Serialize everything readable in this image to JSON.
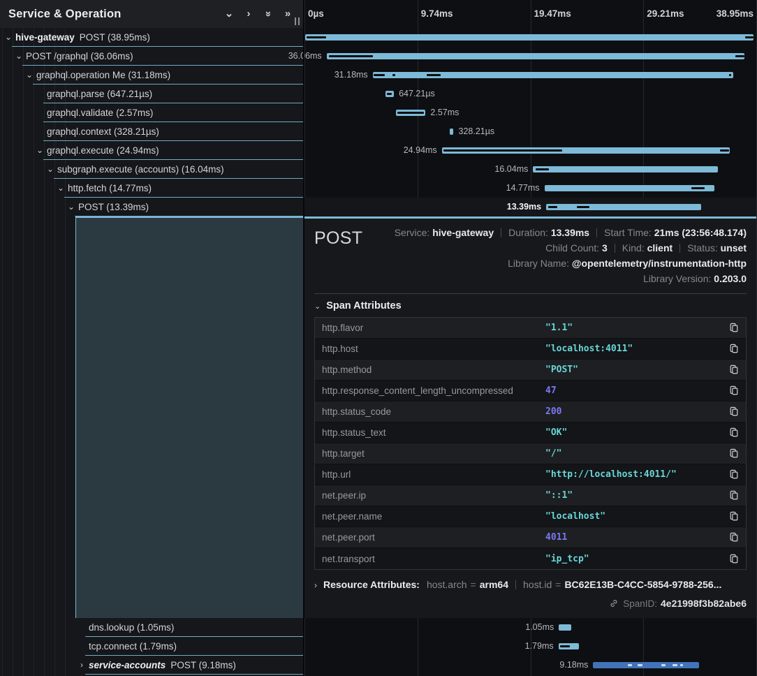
{
  "header": {
    "title": "Service & Operation",
    "icons": [
      {
        "name": "collapse-one-icon",
        "glyph": "⌄",
        "rot": false
      },
      {
        "name": "expand-one-icon",
        "glyph": "›",
        "rot": false
      },
      {
        "name": "collapse-all-icon",
        "glyph": "»",
        "rot": true
      },
      {
        "name": "expand-all-icon",
        "glyph": "»",
        "rot": false
      }
    ]
  },
  "colors": {
    "span_bar": "#7dbad7",
    "accounts_bar": "#4273ba",
    "string_value": "#69d6d3",
    "number_value": "#7b79f2",
    "selected_rect": "#2b3a41"
  },
  "ruler": {
    "ticks": [
      {
        "label": "0µs",
        "pct": 0,
        "align": "left"
      },
      {
        "label": "9.74ms",
        "pct": 25,
        "align": "left"
      },
      {
        "label": "19.47ms",
        "pct": 50,
        "align": "left"
      },
      {
        "label": "29.21ms",
        "pct": 75,
        "align": "left"
      },
      {
        "label": "38.95ms",
        "pct": 100,
        "align": "right"
      }
    ]
  },
  "rows": [
    {
      "group": "top",
      "depth": 0,
      "service": "hive-gateway",
      "service_style": "bold",
      "label": "POST (38.95ms)",
      "expander": "expanded",
      "selected": false,
      "accounts": false,
      "bar": {
        "left": 0.15,
        "width": 99.3,
        "label": "",
        "side": "none",
        "marks": [
          {
            "l": 0.4,
            "w": 4.4
          },
          {
            "l": 97.5,
            "w": 1.9
          }
        ]
      }
    },
    {
      "group": "top",
      "depth": 1,
      "service": null,
      "service_style": null,
      "label": "POST /graphql (36.06ms)",
      "expander": "expanded",
      "selected": false,
      "accounts": false,
      "bar": {
        "left": 4.9,
        "width": 92.4,
        "label": "36.06ms",
        "side": "left",
        "marks": [
          {
            "l": 5.4,
            "w": 9.7
          },
          {
            "l": 95.4,
            "w": 1.9
          }
        ]
      }
    },
    {
      "group": "top",
      "depth": 2,
      "service": null,
      "service_style": null,
      "label": "graphql.operation Me (31.18ms)",
      "expander": "expanded",
      "selected": false,
      "accounts": false,
      "bar": {
        "left": 15.1,
        "width": 79.8,
        "label": "31.18ms",
        "side": "left",
        "marks": [
          {
            "l": 15.3,
            "w": 2.5
          },
          {
            "l": 19.4,
            "w": 0.7
          },
          {
            "l": 27.0,
            "w": 3.1
          },
          {
            "l": 94.0,
            "w": 0.5
          }
        ]
      }
    },
    {
      "group": "top",
      "depth": 3,
      "service": null,
      "service_style": null,
      "label": "graphql.parse (647.21µs)",
      "expander": null,
      "selected": false,
      "accounts": false,
      "bar": {
        "left": 17.9,
        "width": 1.9,
        "label": "647.21µs",
        "side": "right",
        "marks": [
          {
            "l": 18.2,
            "w": 1.1
          }
        ]
      }
    },
    {
      "group": "top",
      "depth": 3,
      "service": null,
      "service_style": null,
      "label": "graphql.validate (2.57ms)",
      "expander": null,
      "selected": false,
      "accounts": false,
      "bar": {
        "left": 20.2,
        "width": 6.6,
        "label": "2.57ms",
        "side": "right",
        "marks": [
          {
            "l": 20.5,
            "w": 5.9
          }
        ]
      }
    },
    {
      "group": "top",
      "depth": 3,
      "service": null,
      "service_style": null,
      "label": "graphql.context (328.21µs)",
      "expander": null,
      "selected": false,
      "accounts": false,
      "bar": {
        "left": 32.1,
        "width": 0.9,
        "label": "328.21µs",
        "side": "right",
        "marks": []
      }
    },
    {
      "group": "top",
      "depth": 3,
      "service": null,
      "service_style": null,
      "label": "graphql.execute (24.94ms)",
      "expander": "expanded",
      "selected": false,
      "accounts": false,
      "bar": {
        "left": 30.4,
        "width": 63.7,
        "label": "24.94ms",
        "side": "left",
        "marks": [
          {
            "l": 30.8,
            "w": 26.3
          },
          {
            "l": 92.0,
            "w": 1.9
          }
        ]
      }
    },
    {
      "group": "top",
      "depth": 4,
      "service": null,
      "service_style": null,
      "label": "subgraph.execute (accounts) (16.04ms)",
      "expander": "expanded",
      "selected": false,
      "accounts": false,
      "bar": {
        "left": 50.6,
        "width": 40.9,
        "label": "16.04ms",
        "side": "left",
        "marks": [
          {
            "l": 51.1,
            "w": 3.0
          }
        ]
      }
    },
    {
      "group": "top",
      "depth": 5,
      "service": null,
      "service_style": null,
      "label": "http.fetch (14.77ms)",
      "expander": "expanded",
      "selected": false,
      "accounts": false,
      "bar": {
        "left": 53.1,
        "width": 37.7,
        "label": "14.77ms",
        "side": "left",
        "marks": [
          {
            "l": 85.6,
            "w": 3.0
          }
        ]
      }
    },
    {
      "group": "top",
      "depth": 6,
      "service": null,
      "service_style": null,
      "label": "POST (13.39ms)",
      "expander": "expanded",
      "selected": true,
      "accounts": false,
      "bar": {
        "left": 53.5,
        "width": 34.3,
        "label": "13.39ms",
        "side": "left",
        "marks": [
          {
            "l": 54.0,
            "w": 1.9
          },
          {
            "l": 60.3,
            "w": 2.8
          }
        ]
      }
    },
    {
      "group": "bottom",
      "depth": 7,
      "service": null,
      "service_style": null,
      "label": "dns.lookup (1.05ms)",
      "expander": null,
      "selected": false,
      "accounts": false,
      "bar": {
        "left": 56.3,
        "width": 2.7,
        "label": "1.05ms",
        "side": "left",
        "marks": []
      }
    },
    {
      "group": "bottom",
      "depth": 7,
      "service": null,
      "service_style": null,
      "label": "tcp.connect (1.79ms)",
      "expander": null,
      "selected": false,
      "accounts": false,
      "bar": {
        "left": 56.2,
        "width": 4.6,
        "label": "1.79ms",
        "side": "left",
        "marks": [
          {
            "l": 56.5,
            "w": 2.2
          }
        ]
      }
    },
    {
      "group": "bottom",
      "depth": 7,
      "service": "service-accounts",
      "service_style": "bold-italic",
      "label": "POST (9.18ms)",
      "expander": "collapsed",
      "selected": false,
      "accounts": true,
      "bar": {
        "left": 63.9,
        "width": 23.5,
        "label": "9.18ms",
        "side": "left",
        "marks": [
          {
            "l": 71.5,
            "w": 1.0
          },
          {
            "l": 73.8,
            "w": 1.0
          },
          {
            "l": 79.0,
            "w": 0.9
          },
          {
            "l": 81.5,
            "w": 1.0
          },
          {
            "l": 83.1,
            "w": 0.6
          }
        ]
      }
    }
  ],
  "detail": {
    "title": "POST",
    "overview": [
      [
        {
          "label": "Service:",
          "value": "hive-gateway"
        },
        {
          "label": "Duration:",
          "value": "13.39ms"
        },
        {
          "label": "Start Time:",
          "value": "21ms (23:56:48.174)"
        }
      ],
      [
        {
          "label": "Child Count:",
          "value": "3"
        },
        {
          "label": "Kind:",
          "value": "client"
        },
        {
          "label": "Status:",
          "value": "unset"
        }
      ],
      [
        {
          "label": "Library Name:",
          "value": "@opentelemetry/instrumentation-http"
        }
      ],
      [
        {
          "label": "Library Version:",
          "value": "0.203.0"
        }
      ]
    ],
    "span_attributes": {
      "heading": "Span Attributes",
      "rows": [
        {
          "key": "http.flavor",
          "value": "\"1.1\"",
          "type": "str"
        },
        {
          "key": "http.host",
          "value": "\"localhost:4011\"",
          "type": "str"
        },
        {
          "key": "http.method",
          "value": "\"POST\"",
          "type": "str"
        },
        {
          "key": "http.response_content_length_uncompressed",
          "value": "47",
          "type": "num"
        },
        {
          "key": "http.status_code",
          "value": "200",
          "type": "num"
        },
        {
          "key": "http.status_text",
          "value": "\"OK\"",
          "type": "str"
        },
        {
          "key": "http.target",
          "value": "\"/\"",
          "type": "str"
        },
        {
          "key": "http.url",
          "value": "\"http://localhost:4011/\"",
          "type": "str"
        },
        {
          "key": "net.peer.ip",
          "value": "\"::1\"",
          "type": "str"
        },
        {
          "key": "net.peer.name",
          "value": "\"localhost\"",
          "type": "str"
        },
        {
          "key": "net.peer.port",
          "value": "4011",
          "type": "num"
        },
        {
          "key": "net.transport",
          "value": "\"ip_tcp\"",
          "type": "str"
        }
      ]
    },
    "resource": {
      "heading": "Resource Attributes:",
      "pairs": [
        {
          "key": "host.arch",
          "value": "arm64"
        },
        {
          "key": "host.id",
          "value": "BC62E13B-C4CC-5854-9788-256..."
        }
      ]
    },
    "span_id": {
      "label": "SpanID:",
      "value": "4e21998f3b82abe6"
    }
  }
}
